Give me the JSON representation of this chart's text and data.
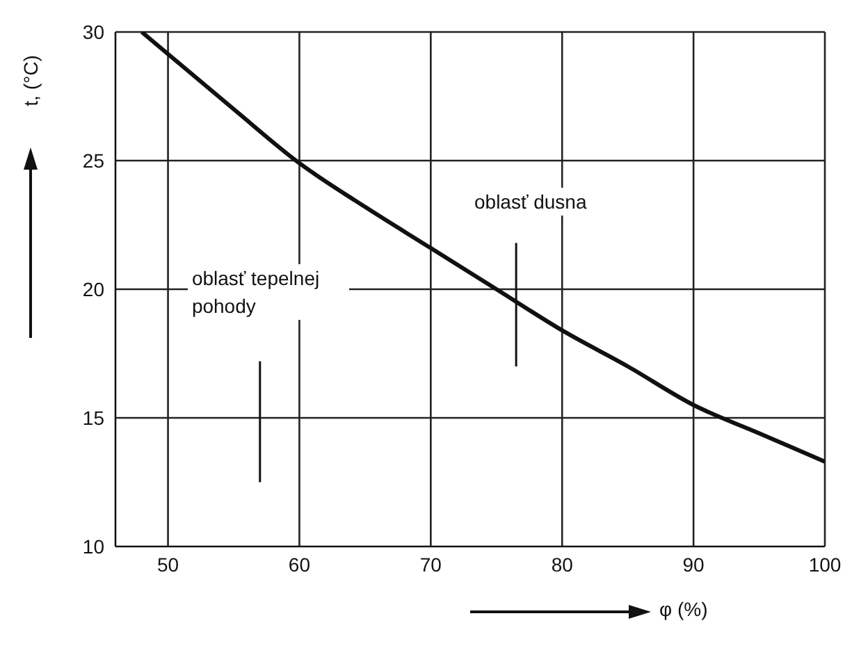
{
  "chart_data": {
    "type": "line",
    "xlabel": "φ (%)",
    "ylabel": "t, (°C)",
    "annotations": [
      "oblasť dusna",
      "oblasť tepelnej pohody"
    ],
    "x": [
      48,
      55,
      60,
      65,
      70,
      75,
      80,
      85,
      90,
      95,
      100
    ],
    "series": [
      {
        "color": "#111111",
        "values": [
          30,
          27,
          24.9,
          23.2,
          21.6,
          20,
          18.4,
          17,
          15.5,
          14.4,
          13.3
        ]
      }
    ],
    "xlim": [
      46,
      100
    ],
    "xticks": [
      50,
      60,
      70,
      80,
      90,
      100
    ],
    "ylim": [
      10,
      30
    ],
    "yticks": [
      10,
      15,
      20,
      25,
      30
    ],
    "grid": true,
    "marker": "none",
    "line_style": "solid"
  }
}
